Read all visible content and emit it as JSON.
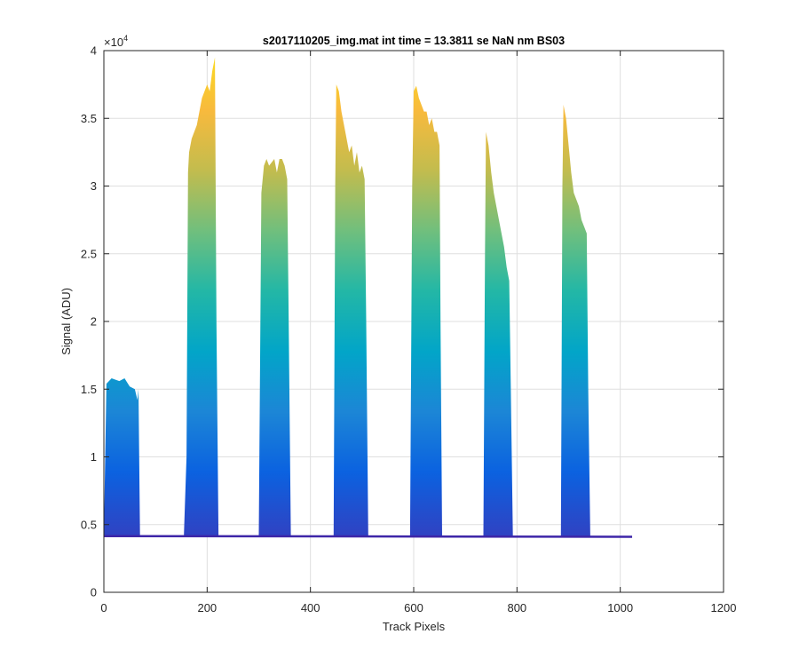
{
  "chart_data": {
    "type": "area",
    "title": "s2017110205_img.mat int time = 13.3811 se  NaN nm BS03",
    "xlabel": "Track Pixels",
    "ylabel": "Signal (ADU)",
    "y_exponent_label": "×10",
    "y_exponent_power": "4",
    "xlim": [
      0,
      1200
    ],
    "ylim": [
      0,
      40000
    ],
    "xticks": [
      0,
      200,
      400,
      600,
      800,
      1000,
      1200
    ],
    "yticks": [
      0,
      5000,
      10000,
      15000,
      20000,
      25000,
      30000,
      35000,
      40000
    ],
    "xtick_labels": [
      "0",
      "200",
      "400",
      "600",
      "800",
      "1000",
      "1200"
    ],
    "ytick_labels": [
      "0",
      "0.5",
      "1",
      "1.5",
      "2",
      "2.5",
      "3",
      "3.5",
      "4"
    ],
    "grid": true,
    "colormap": [
      "#3e26a8",
      "#2e44c4",
      "#0b62e0",
      "#1c86d6",
      "#02a5c8",
      "#23b7a6",
      "#70bf7d",
      "#c2bc4e",
      "#f8ba3d",
      "#fbdd1e"
    ],
    "baseline": 4150,
    "end_x": 1023,
    "end_value": 4100,
    "series": [
      {
        "x": [
          0,
          5,
          15,
          30,
          40,
          50,
          55,
          60,
          65,
          67,
          70,
          72
        ],
        "values": [
          4200,
          15400,
          15800,
          15600,
          15800,
          15200,
          15100,
          15000,
          14200,
          15000,
          4200,
          4150
        ]
      },
      {
        "x": [
          155,
          160,
          163,
          165,
          170,
          180,
          190,
          200,
          205,
          210,
          215,
          218,
          222
        ],
        "values": [
          4300,
          10000,
          31000,
          32500,
          33500,
          34500,
          36500,
          37500,
          37000,
          38500,
          39500,
          20000,
          4200
        ]
      },
      {
        "x": [
          300,
          305,
          310,
          315,
          320,
          330,
          335,
          340,
          345,
          350,
          355,
          358,
          362
        ],
        "values": [
          4250,
          29500,
          31500,
          32000,
          31500,
          32000,
          31000,
          32000,
          32000,
          31500,
          30500,
          20000,
          4200
        ]
      },
      {
        "x": [
          445,
          448,
          450,
          455,
          460,
          465,
          470,
          475,
          480,
          485,
          490,
          495,
          500,
          505,
          508,
          512
        ],
        "values": [
          4200,
          30000,
          37500,
          37000,
          35500,
          34500,
          33500,
          32500,
          33000,
          31500,
          32500,
          31000,
          31500,
          30500,
          20000,
          4200
        ]
      },
      {
        "x": [
          593,
          597,
          600,
          605,
          610,
          615,
          620,
          625,
          630,
          635,
          640,
          645,
          650,
          652,
          655
        ],
        "values": [
          4200,
          30000,
          37000,
          37400,
          36500,
          36000,
          35500,
          35500,
          34500,
          35000,
          34000,
          34000,
          33000,
          20000,
          4150
        ]
      },
      {
        "x": [
          735,
          738,
          740,
          745,
          750,
          755,
          760,
          765,
          770,
          775,
          780,
          785,
          788,
          792
        ],
        "values": [
          4150,
          25000,
          34000,
          33000,
          31000,
          29500,
          28500,
          27500,
          26500,
          25500,
          24000,
          23000,
          15000,
          4150
        ]
      },
      {
        "x": [
          885,
          888,
          890,
          895,
          900,
          905,
          910,
          915,
          920,
          925,
          930,
          935,
          938,
          942
        ],
        "values": [
          4150,
          30000,
          36000,
          35000,
          33000,
          31000,
          29500,
          29000,
          28500,
          27500,
          27000,
          26500,
          15000,
          4150
        ]
      }
    ]
  }
}
